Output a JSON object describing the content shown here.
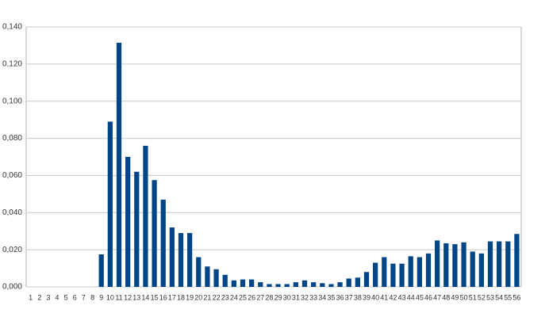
{
  "chart_data": {
    "type": "bar",
    "categories": [
      "1",
      "2",
      "3",
      "4",
      "5",
      "6",
      "7",
      "8",
      "9",
      "10",
      "11",
      "12",
      "13",
      "14",
      "15",
      "16",
      "17",
      "18",
      "19",
      "20",
      "21",
      "22",
      "23",
      "24",
      "25",
      "26",
      "27",
      "28",
      "29",
      "30",
      "31",
      "32",
      "33",
      "34",
      "35",
      "36",
      "37",
      "38",
      "39",
      "40",
      "41",
      "42",
      "43",
      "44",
      "45",
      "46",
      "47",
      "48",
      "49",
      "50",
      "51",
      "52",
      "53",
      "54",
      "55",
      "56"
    ],
    "values": [
      0,
      0,
      0,
      0,
      0,
      0,
      0,
      0,
      0.0175,
      0.089,
      0.1315,
      0.07,
      0.062,
      0.076,
      0.0575,
      0.047,
      0.032,
      0.029,
      0.029,
      0.016,
      0.011,
      0.0095,
      0.0065,
      0.0035,
      0.004,
      0.004,
      0.0025,
      0.0015,
      0.0015,
      0.0015,
      0.0025,
      0.0035,
      0.0025,
      0.002,
      0.0015,
      0.0025,
      0.0045,
      0.005,
      0.008,
      0.013,
      0.016,
      0.0125,
      0.0125,
      0.0165,
      0.016,
      0.018,
      0.025,
      0.0235,
      0.023,
      0.024,
      0.019,
      0.018,
      0.0245,
      0.0245,
      0.0245,
      0.0285
    ],
    "color": "#004586",
    "ylim": [
      0,
      0.14
    ],
    "yticks": [
      {
        "value": 0,
        "label": "0,000"
      },
      {
        "value": 0.02,
        "label": "0,020"
      },
      {
        "value": 0.04,
        "label": "0,040"
      },
      {
        "value": 0.06,
        "label": "0,060"
      },
      {
        "value": 0.08,
        "label": "0,080"
      },
      {
        "value": 0.1,
        "label": "0,100"
      },
      {
        "value": 0.12,
        "label": "0,120"
      },
      {
        "value": 0.14,
        "label": "0,140"
      }
    ],
    "grid": true
  }
}
